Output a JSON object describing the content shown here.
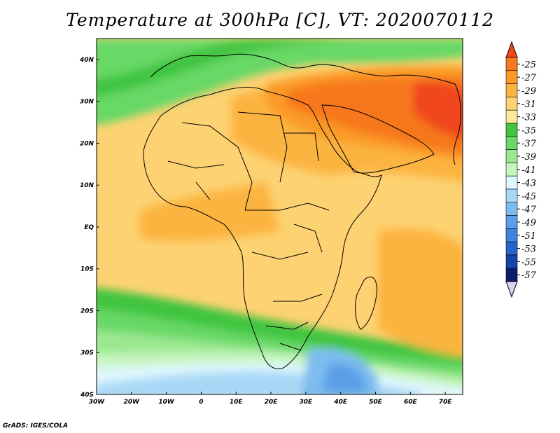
{
  "title": "Temperature at 300hPa [C], VT: 2020070112",
  "credit": "GrADS: IGES/COLA",
  "map": {
    "lon_ticks": [
      "30W",
      "20W",
      "10W",
      "0",
      "10E",
      "20E",
      "30E",
      "40E",
      "50E",
      "60E",
      "70E"
    ],
    "lat_ticks": [
      "40N",
      "30N",
      "20N",
      "10N",
      "EQ",
      "10S",
      "20S",
      "30S",
      "40S"
    ],
    "lon_range": [
      -30,
      75
    ],
    "lat_range": [
      -40,
      45
    ]
  },
  "colorbar": {
    "levels": [
      "-25",
      "-27",
      "-29",
      "-31",
      "-33",
      "-35",
      "-37",
      "-39",
      "-41",
      "-43",
      "-45",
      "-47",
      "-49",
      "-51",
      "-53",
      "-55",
      "-57"
    ],
    "colors": [
      "#f0461a",
      "#f7781f",
      "#fb9a26",
      "#fcb440",
      "#fdd272",
      "#fce99d",
      "#41c53f",
      "#68d866",
      "#9be891",
      "#c7f5c0",
      "#dff7ff",
      "#a8d8f6",
      "#7dbcef",
      "#5a9fe7",
      "#3e83de",
      "#2565c8",
      "#1446a8",
      "#0a1e6e",
      "#d8d2f5"
    ]
  },
  "palette": {
    "land_border": "#000000"
  }
}
